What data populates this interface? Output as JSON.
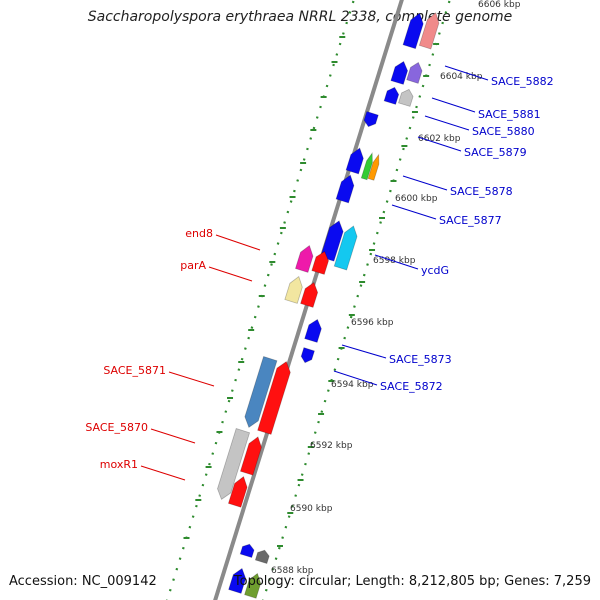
{
  "title": "Saccharopolyspora erythraea NRRL 2338, complete genome",
  "accession_text": "Accession: NC_009142",
  "stats_text": "Topology: circular; Length: 8,212,805 bp; Genes: 7,259",
  "colors": {
    "backbone": "#8a8a8a",
    "ruler": "#2e8b2e",
    "left_label": "#dd0000",
    "right_label": "#0000cc",
    "tick_text": "#333333"
  },
  "ticks": [
    {
      "label": "6606 kbp"
    },
    {
      "label": "6604 kbp"
    },
    {
      "label": "6602 kbp"
    },
    {
      "label": "6600 kbp"
    },
    {
      "label": "6598 kbp"
    },
    {
      "label": "6596 kbp"
    },
    {
      "label": "6594 kbp"
    },
    {
      "label": "6592 kbp"
    },
    {
      "label": "6590 kbp"
    },
    {
      "label": "6588 kbp"
    }
  ],
  "gene_labels_left": [
    {
      "name": "end8"
    },
    {
      "name": "parA"
    },
    {
      "name": "SACE_5871"
    },
    {
      "name": "SACE_5870"
    },
    {
      "name": "moxR1"
    }
  ],
  "gene_labels_right": [
    {
      "name": "SACE_5882"
    },
    {
      "name": "SACE_5881"
    },
    {
      "name": "SACE_5880"
    },
    {
      "name": "SACE_5879"
    },
    {
      "name": "SACE_5878"
    },
    {
      "name": "SACE_5877"
    },
    {
      "name": "ycdG"
    },
    {
      "name": "SACE_5873"
    },
    {
      "name": "SACE_5872"
    }
  ],
  "gene_colors": {
    "blue": "#0a0af0",
    "red": "#ff1010",
    "pink": "#f08a8a",
    "purple": "#8866dd",
    "silver": "#c4c4c4",
    "green": "#33cc33",
    "orange": "#ff9900",
    "cyan": "#14c8f0",
    "magenta": "#ee1aaa",
    "cream": "#f2e6a0",
    "steel": "#4a86c0",
    "darkgray": "#6a6a6a",
    "olive": "#6f9e2f"
  }
}
